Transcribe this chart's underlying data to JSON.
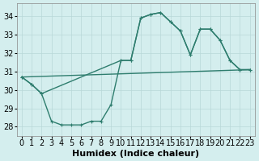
{
  "xlabel": "Humidex (Indice chaleur)",
  "background_color": "#d4eeee",
  "line_color": "#2e7d6e",
  "grid_color": "#b8d8d8",
  "xlim": [
    -0.5,
    23.5
  ],
  "ylim": [
    27.5,
    34.7
  ],
  "yticks": [
    28,
    29,
    30,
    31,
    32,
    33,
    34
  ],
  "xticks": [
    0,
    1,
    2,
    3,
    4,
    5,
    6,
    7,
    8,
    9,
    10,
    11,
    12,
    13,
    14,
    15,
    16,
    17,
    18,
    19,
    20,
    21,
    22,
    23
  ],
  "series": [
    {
      "x": [
        0,
        1,
        2,
        3,
        4,
        5,
        6,
        7,
        8,
        9,
        10,
        11,
        12,
        13,
        14,
        15,
        16,
        17,
        18,
        19,
        20,
        21,
        22,
        23
      ],
      "y": [
        30.7,
        30.3,
        29.8,
        28.3,
        28.1,
        28.1,
        28.1,
        28.3,
        28.3,
        29.2,
        31.6,
        31.6,
        33.9,
        34.1,
        34.2,
        33.7,
        33.2,
        31.9,
        33.3,
        33.3,
        32.7,
        31.6,
        31.1,
        31.1
      ],
      "marker": true
    },
    {
      "x": [
        0,
        1,
        2,
        10,
        11,
        12,
        13,
        14,
        15,
        16,
        17,
        18,
        19,
        20,
        21,
        22,
        23
      ],
      "y": [
        30.7,
        30.3,
        29.8,
        31.6,
        31.6,
        33.9,
        34.1,
        34.2,
        33.7,
        33.2,
        31.9,
        33.3,
        33.3,
        32.7,
        31.6,
        31.1,
        31.1
      ],
      "marker": true
    },
    {
      "x": [
        0,
        23
      ],
      "y": [
        30.7,
        31.1
      ],
      "marker": false
    }
  ],
  "marker_size": 3.5,
  "linewidth": 1.0,
  "font_size": 7
}
